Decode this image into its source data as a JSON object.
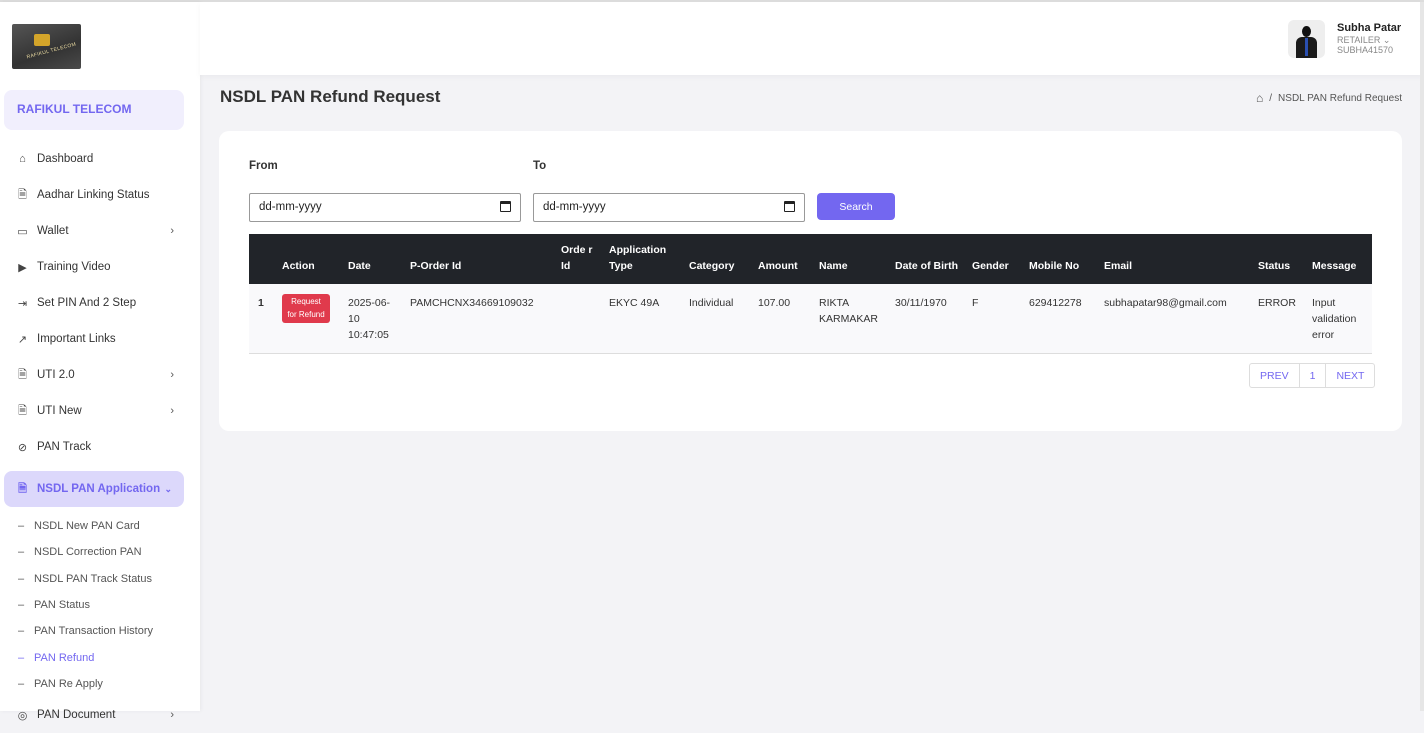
{
  "sidebar": {
    "logo_text": "RAFIKUL TELECOM",
    "brand": "RAFIKUL TELECOM",
    "items": [
      {
        "label": "Dashboard",
        "icon": "home-icon",
        "glyph": "⌂"
      },
      {
        "label": "Aadhar Linking Status",
        "icon": "document-icon",
        "glyph": "🗎"
      },
      {
        "label": "Wallet",
        "icon": "wallet-icon",
        "glyph": "▭",
        "chevron": "›"
      },
      {
        "label": "Training Video",
        "icon": "video-icon",
        "glyph": "▶"
      },
      {
        "label": "Set PIN And 2 Step",
        "icon": "login-icon",
        "glyph": "⇥"
      },
      {
        "label": "Important Links",
        "icon": "external-link-icon",
        "glyph": "↗"
      },
      {
        "label": "UTI 2.0",
        "icon": "document-icon",
        "glyph": "🗎",
        "chevron": "›"
      },
      {
        "label": "UTI New",
        "icon": "document-icon",
        "glyph": "🗎",
        "chevron": "›"
      },
      {
        "label": "PAN Track",
        "icon": "compass-icon",
        "glyph": "⊘"
      }
    ],
    "active": {
      "label": "NSDL PAN Application",
      "icon": "document-icon",
      "glyph": "🗎",
      "chevron": "⌄"
    },
    "sub_dash": "–",
    "sub_items": [
      "NSDL New PAN Card",
      "NSDL Correction PAN",
      "NSDL PAN Track Status",
      "PAN Status",
      "PAN Transaction History",
      "PAN Refund",
      "PAN Re Apply"
    ],
    "after": {
      "label": "PAN Document",
      "icon": "location-icon",
      "glyph": "◎",
      "chevron": "›"
    }
  },
  "user": {
    "name": "Subha Patar",
    "role": "RETAILER ⌄",
    "id": "SUBHA41570"
  },
  "page": {
    "title": "NSDL PAN Refund Request",
    "breadcrumb_sep": "/",
    "breadcrumb": "NSDL PAN Refund Request"
  },
  "filters": {
    "from_label": "From",
    "to_label": "To",
    "from_value": "dd-mm-yyyy",
    "to_value": "dd-mm-yyyy",
    "search": "Search"
  },
  "table": {
    "headers": [
      "",
      "Action",
      "Date",
      "P-Order Id",
      "Orde r Id",
      "Application Type",
      "Category",
      "Amount",
      "Name",
      "Date of Birth",
      "Gender",
      "Mobile No",
      "Email",
      "Status",
      "Message"
    ],
    "rows": [
      {
        "num": "1",
        "action": "Request for Refund",
        "date": "2025-06-10 10:47:05",
        "porder": "PAMCHCNX34669109032",
        "order": "",
        "type": "EKYC 49A",
        "category": "Individual",
        "amount": "107.00",
        "name": "RIKTA KARMAKAR",
        "dob": "30/11/1970",
        "gender": "F",
        "mobile": "629412278",
        "email": "subhapatar98@gmail.com",
        "status": "ERROR",
        "message": "Input validation error"
      }
    ]
  },
  "pagination": {
    "prev": "PREV",
    "page": "1",
    "next": "NEXT"
  },
  "colors": {
    "accent": "#7367f0",
    "danger": "#e03a4c",
    "table_header": "#212429"
  }
}
